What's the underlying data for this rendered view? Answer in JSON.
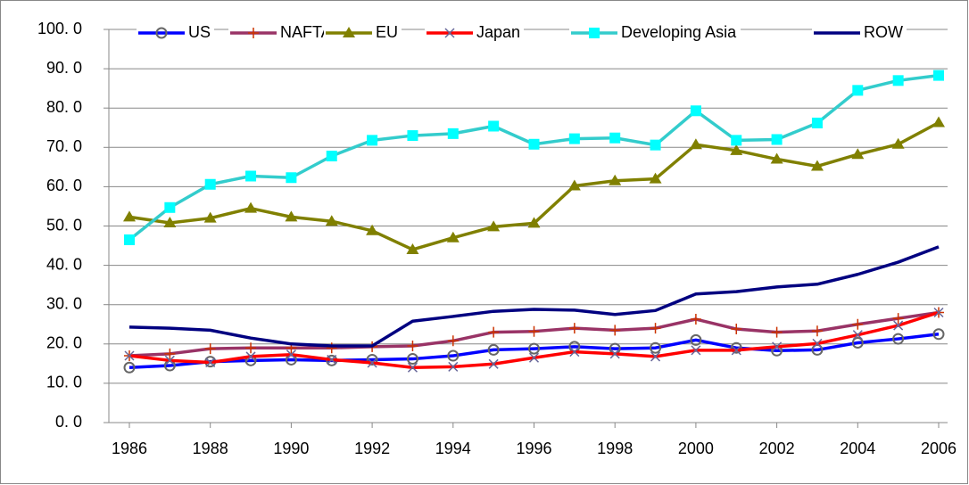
{
  "chart_data": {
    "type": "line",
    "x": [
      1986,
      1987,
      1988,
      1989,
      1990,
      1991,
      1992,
      1993,
      1994,
      1995,
      1996,
      1997,
      1998,
      1999,
      2000,
      2001,
      2002,
      2003,
      2004,
      2005,
      2006
    ],
    "xlim": [
      1986,
      2006
    ],
    "xticks": [
      1986,
      1988,
      1990,
      1992,
      1994,
      1996,
      1998,
      2000,
      2002,
      2004,
      2006
    ],
    "ylim": [
      0,
      100
    ],
    "yticks": [
      {
        "value": 0,
        "label": "0. 0"
      },
      {
        "value": 10,
        "label": "10. 0"
      },
      {
        "value": 20,
        "label": "20. 0"
      },
      {
        "value": 30,
        "label": "30. 0"
      },
      {
        "value": 40,
        "label": "40. 0"
      },
      {
        "value": 50,
        "label": "50. 0"
      },
      {
        "value": 60,
        "label": "60. 0"
      },
      {
        "value": 70,
        "label": "70. 0"
      },
      {
        "value": 80,
        "label": "80. 0"
      },
      {
        "value": 90,
        "label": "90. 0"
      },
      {
        "value": 100,
        "label": "100. 0"
      }
    ],
    "grid": true,
    "legend": "top",
    "series": [
      {
        "name": "US",
        "color": "#0000ff",
        "marker": "circle",
        "marker_color": "#666666",
        "values": [
          14.0,
          14.5,
          15.5,
          15.8,
          16.0,
          15.8,
          16.0,
          16.2,
          17.0,
          18.5,
          18.8,
          19.3,
          18.8,
          19.0,
          21.0,
          19.0,
          18.3,
          18.5,
          20.3,
          21.3,
          22.5
        ]
      },
      {
        "name": "NAFTA",
        "color": "#993366",
        "marker": "plus",
        "marker_color": "#cc3300",
        "values": [
          17.0,
          17.5,
          18.8,
          19.0,
          19.0,
          19.0,
          19.3,
          19.5,
          20.8,
          23.0,
          23.2,
          24.0,
          23.5,
          24.0,
          26.3,
          23.8,
          23.0,
          23.3,
          25.0,
          26.5,
          28.0
        ]
      },
      {
        "name": "EU",
        "color": "#808000",
        "marker": "triangle",
        "marker_color": "#808000",
        "values": [
          52.3,
          50.8,
          52.0,
          54.5,
          52.3,
          51.2,
          48.8,
          44.0,
          47.0,
          49.8,
          50.7,
          60.2,
          61.5,
          62.0,
          70.7,
          69.2,
          67.0,
          65.2,
          68.2,
          70.8,
          76.3
        ]
      },
      {
        "name": "Japan",
        "color": "#ff0000",
        "marker": "cross",
        "marker_color": "#666699",
        "values": [
          17.0,
          15.8,
          15.3,
          16.8,
          17.3,
          16.0,
          15.2,
          14.0,
          14.2,
          14.9,
          16.5,
          18.0,
          17.5,
          16.8,
          18.4,
          18.4,
          19.3,
          20.1,
          22.3,
          24.7,
          28.0
        ]
      },
      {
        "name": "Developing Asia",
        "color": "#33cccc",
        "marker": "square",
        "marker_color": "#00ffff",
        "values": [
          46.5,
          54.7,
          60.6,
          62.7,
          62.3,
          67.8,
          71.8,
          73.0,
          73.5,
          75.4,
          70.8,
          72.2,
          72.4,
          70.6,
          79.3,
          71.8,
          72.0,
          76.2,
          84.5,
          87.0,
          88.3
        ]
      },
      {
        "name": "ROW",
        "color": "#000080",
        "marker": "none",
        "marker_color": "#000080",
        "values": [
          24.3,
          24.0,
          23.5,
          21.5,
          20.0,
          19.5,
          19.5,
          25.8,
          27.0,
          28.3,
          28.8,
          28.6,
          27.5,
          28.5,
          32.7,
          33.3,
          34.5,
          35.2,
          37.7,
          40.8,
          44.7
        ]
      }
    ]
  }
}
